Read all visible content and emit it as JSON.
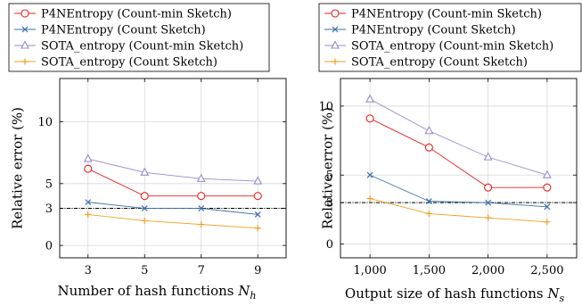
{
  "chart_data": [
    {
      "type": "line",
      "xlabel": "Number of hash functions",
      "xlabel_symbol": "N",
      "xlabel_sub": "h",
      "ylabel": "Relative error (%)",
      "x": [
        3,
        5,
        7,
        9
      ],
      "x_tick_labels": [
        "3",
        "5",
        "7",
        "9"
      ],
      "xlim": [
        2,
        10
      ],
      "ylim": [
        -1,
        13.5
      ],
      "y_ticks": [
        0,
        3,
        5,
        10
      ],
      "y_tick_labels": [
        "0",
        "3",
        "5",
        "10"
      ],
      "reference_line": 3,
      "grid": true,
      "legend_position": "top",
      "series": [
        {
          "name": "P4NEntropy (Count-min Sketch)",
          "values": [
            6.2,
            4.0,
            4.0,
            4.0
          ],
          "color": "#e8201e",
          "marker": "circle"
        },
        {
          "name": "P4NEntropy (Count Sketch)",
          "values": [
            3.5,
            3.0,
            3.0,
            2.5
          ],
          "color": "#3c6fa8",
          "marker": "x"
        },
        {
          "name": "SOTA_entropy (Count-min Sketch)",
          "values": [
            7.0,
            5.9,
            5.4,
            5.2
          ],
          "color": "#9a8ccc",
          "marker": "triangle"
        },
        {
          "name": "SOTA_entropy (Count Sketch)",
          "values": [
            2.5,
            2.0,
            1.7,
            1.4
          ],
          "color": "#f0a020",
          "marker": "plus"
        }
      ]
    },
    {
      "type": "line",
      "xlabel": "Output size of hash functions",
      "xlabel_symbol": "N",
      "xlabel_sub": "s",
      "ylabel": "Relative error (%)",
      "x": [
        1000,
        1500,
        2000,
        2500
      ],
      "x_tick_labels": [
        "1,000",
        "1,500",
        "2,000",
        "2,500"
      ],
      "xlim": [
        750,
        2750
      ],
      "ylim": [
        -1,
        12
      ],
      "y_ticks": [
        0,
        3,
        5,
        10
      ],
      "y_tick_labels": [
        "0",
        "3",
        "5",
        "10"
      ],
      "reference_line": 3,
      "grid": true,
      "legend_position": "top",
      "series": [
        {
          "name": "P4NEntropy (Count-min Sketch)",
          "values": [
            9.1,
            7.0,
            4.1,
            4.1
          ],
          "color": "#e8201e",
          "marker": "circle"
        },
        {
          "name": "P4NEntropy (Count Sketch)",
          "values": [
            5.0,
            3.1,
            3.0,
            2.7
          ],
          "color": "#3c6fa8",
          "marker": "x"
        },
        {
          "name": "SOTA_entropy (Count-min Sketch)",
          "values": [
            10.5,
            8.2,
            6.3,
            5.0
          ],
          "color": "#9a8ccc",
          "marker": "triangle"
        },
        {
          "name": "SOTA_entropy (Count Sketch)",
          "values": [
            3.3,
            2.2,
            1.9,
            1.6
          ],
          "color": "#f0a020",
          "marker": "plus"
        }
      ]
    }
  ]
}
